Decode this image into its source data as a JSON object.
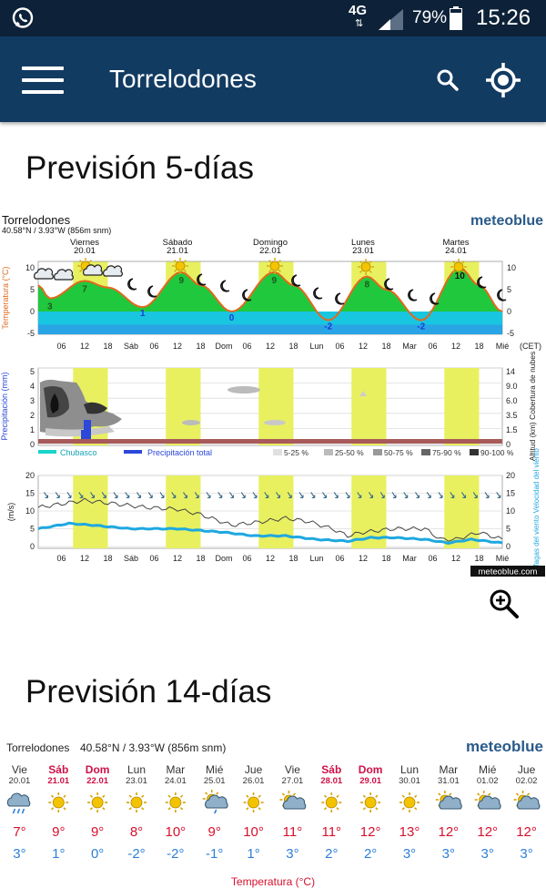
{
  "status_bar": {
    "network": "4G",
    "battery": "79%",
    "time": "15:26"
  },
  "app_bar": {
    "title": "Torrelodones"
  },
  "section_5day": {
    "title": "Previsión 5-días",
    "location": "Torrelodones",
    "coords": "40.58°N / 3.93°W (856m snm)",
    "brand": "meteoblue",
    "credit": "meteoblue.com",
    "tz": "(CET)",
    "days": [
      {
        "name": "Viernes",
        "date": "20.01",
        "weekend": false
      },
      {
        "name": "Sábado",
        "date": "21.01",
        "weekend": true
      },
      {
        "name": "Domingo",
        "date": "22.01",
        "weekend": true
      },
      {
        "name": "Lunes",
        "date": "23.01",
        "weekend": false
      },
      {
        "name": "Martes",
        "date": "24.01",
        "weekend": false
      }
    ],
    "x_ticks": [
      "06",
      "12",
      "18",
      "Sáb",
      "06",
      "12",
      "18",
      "Dom",
      "06",
      "12",
      "18",
      "Lun",
      "06",
      "12",
      "18",
      "Mar",
      "06",
      "12",
      "18",
      "Mié"
    ],
    "temp_axis_label": "Temperatura (°C)",
    "temp_ticks": [
      "10",
      "5",
      "0",
      "-5"
    ],
    "temp_labels": [
      {
        "hour": 3,
        "text": "3",
        "color": "#1c5a1c"
      },
      {
        "hour": 12,
        "text": "7",
        "color": "#1c5a1c"
      },
      {
        "hour": 27,
        "text": "1",
        "color": "#1a3bd6"
      },
      {
        "hour": 37,
        "text": "9",
        "color": "#1c5a1c"
      },
      {
        "hour": 50,
        "text": "0",
        "color": "#1a3bd6"
      },
      {
        "hour": 61,
        "text": "9",
        "color": "#1c5a1c"
      },
      {
        "hour": 75,
        "text": "-2",
        "color": "#1a3bd6"
      },
      {
        "hour": 85,
        "text": "8",
        "color": "#1c5a1c"
      },
      {
        "hour": 99,
        "text": "-2",
        "color": "#1a3bd6"
      },
      {
        "hour": 109,
        "text": "10",
        "color": "#111111"
      }
    ],
    "precip_axis_label": "Precipitación (mm)",
    "precip_ticks": [
      "5",
      "4",
      "3",
      "2",
      "1",
      "0"
    ],
    "cloud_axis_label": "Altitud (km) Cobertura de nubes",
    "cloud_ticks": [
      "14",
      "9.0",
      "6.0",
      "3.5",
      "1.5",
      "0"
    ],
    "legend": {
      "shower": "Chubasco",
      "total": "Precipitación total",
      "coverage": [
        "5-25 %",
        "25-50 %",
        "50-75 %",
        "75-90 %",
        "90-100 %"
      ]
    },
    "wind_axis_left": "(m/s)",
    "wind_axis_right": "Ráfagas del viento Velocidad del viento",
    "wind_ticks": [
      "20",
      "15",
      "10",
      "5",
      "0"
    ]
  },
  "section_14day": {
    "title": "Previsión 14-días",
    "location": "Torrelodones",
    "coords": "40.58°N / 3.93°W (856m snm)",
    "brand": "meteoblue",
    "footer": "Temperatura (°C)",
    "days": [
      {
        "dow": "Vie",
        "date": "20.01",
        "weekend": false,
        "icon": "rain-cloud-icon",
        "max": "7°",
        "min": "3°"
      },
      {
        "dow": "Sáb",
        "date": "21.01",
        "weekend": true,
        "icon": "sun-icon",
        "max": "9°",
        "min": "1°"
      },
      {
        "dow": "Dom",
        "date": "22.01",
        "weekend": true,
        "icon": "sun-icon",
        "max": "9°",
        "min": "0°"
      },
      {
        "dow": "Lun",
        "date": "23.01",
        "weekend": false,
        "icon": "sun-icon",
        "max": "8°",
        "min": "-2°"
      },
      {
        "dow": "Mar",
        "date": "24.01",
        "weekend": false,
        "icon": "sun-icon",
        "max": "10°",
        "min": "-2°"
      },
      {
        "dow": "Mié",
        "date": "25.01",
        "weekend": false,
        "icon": "sun-rain-icon",
        "max": "9°",
        "min": "-1°"
      },
      {
        "dow": "Jue",
        "date": "26.01",
        "weekend": false,
        "icon": "sun-icon",
        "max": "10°",
        "min": "1°"
      },
      {
        "dow": "Vie",
        "date": "27.01",
        "weekend": false,
        "icon": "sun-cloud-icon",
        "max": "11°",
        "min": "3°"
      },
      {
        "dow": "Sáb",
        "date": "28.01",
        "weekend": true,
        "icon": "sun-icon",
        "max": "11°",
        "min": "2°"
      },
      {
        "dow": "Dom",
        "date": "29.01",
        "weekend": true,
        "icon": "sun-icon",
        "max": "12°",
        "min": "2°"
      },
      {
        "dow": "Lun",
        "date": "30.01",
        "weekend": false,
        "icon": "sun-icon",
        "max": "13°",
        "min": "3°"
      },
      {
        "dow": "Mar",
        "date": "31.01",
        "weekend": false,
        "icon": "sun-cloud-icon",
        "max": "12°",
        "min": "3°"
      },
      {
        "dow": "Mié",
        "date": "01.02",
        "weekend": false,
        "icon": "sun-cloud-icon",
        "max": "12°",
        "min": "3°"
      },
      {
        "dow": "Jue",
        "date": "02.02",
        "weekend": false,
        "icon": "sun-cloud-icon",
        "max": "12°",
        "min": "3°"
      }
    ]
  },
  "colors": {
    "status_bar": "#0d2238",
    "app_bar": "#123b62",
    "weekend": "#d01048",
    "max_temp": "#d8102e",
    "min_temp": "#2e7fd8",
    "highlight": "#e8f060"
  }
}
